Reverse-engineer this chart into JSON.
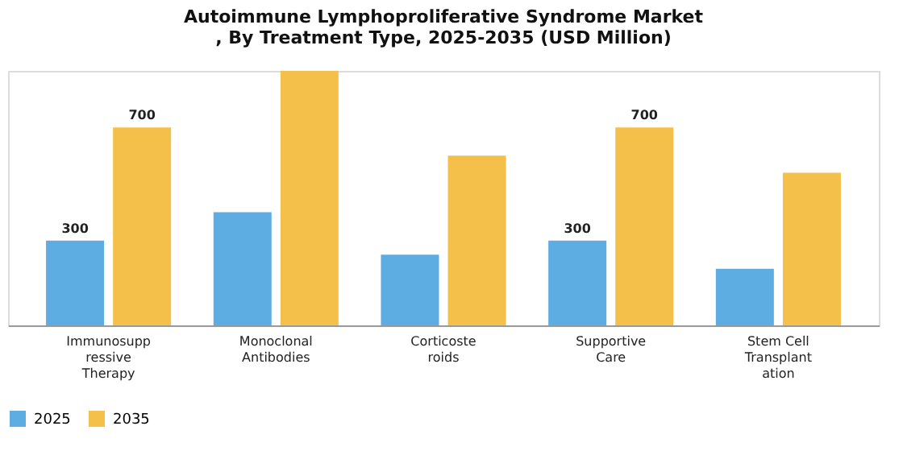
{
  "chart_data": {
    "type": "bar",
    "title": [
      "Autoimmune Lymphoproliferative Syndrome Market",
      ", By Treatment Type, 2025-2035 (USD Million)"
    ],
    "categories": [
      "Immunosuppressive Therapy",
      "Monoclonal Antibodies",
      "Corticosteroids",
      "Supportive Care",
      "Stem Cell Transplantation"
    ],
    "series": [
      {
        "name": "2025",
        "color": "#5dade2",
        "values": [
          300,
          400,
          250,
          300,
          200
        ],
        "value_labels": [
          "300",
          null,
          null,
          "300",
          null
        ]
      },
      {
        "name": "2035",
        "color": "#f5c04a",
        "values": [
          700,
          900,
          600,
          700,
          540
        ],
        "value_labels": [
          "700",
          null,
          null,
          "700",
          null
        ]
      }
    ],
    "legend": "bottom",
    "grid": false,
    "tick_labels": "x"
  }
}
